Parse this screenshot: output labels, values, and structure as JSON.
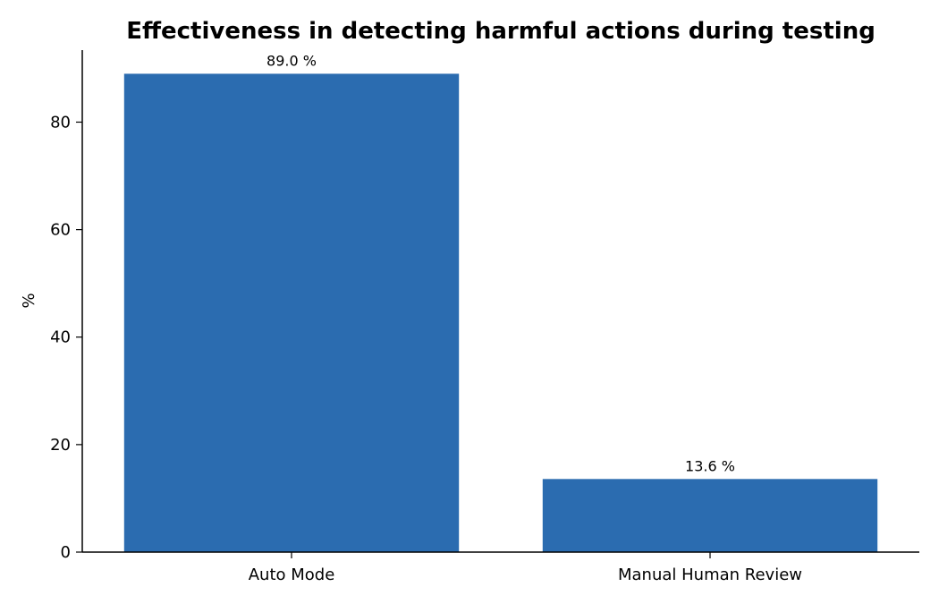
{
  "chart_data": {
    "type": "bar",
    "title": "Effectiveness in detecting harmful actions during testing",
    "xlabel": "",
    "ylabel": "%",
    "categories": [
      "Auto Mode",
      "Manual Human Review"
    ],
    "values": [
      89.0,
      13.6
    ],
    "data_labels": [
      "89.0 %",
      "13.6 %"
    ],
    "ylim": [
      0,
      93.4
    ],
    "yticks": [
      0,
      20,
      40,
      60,
      80
    ],
    "bar_color": "#2b6cb0",
    "grid": false,
    "legend": "none"
  }
}
